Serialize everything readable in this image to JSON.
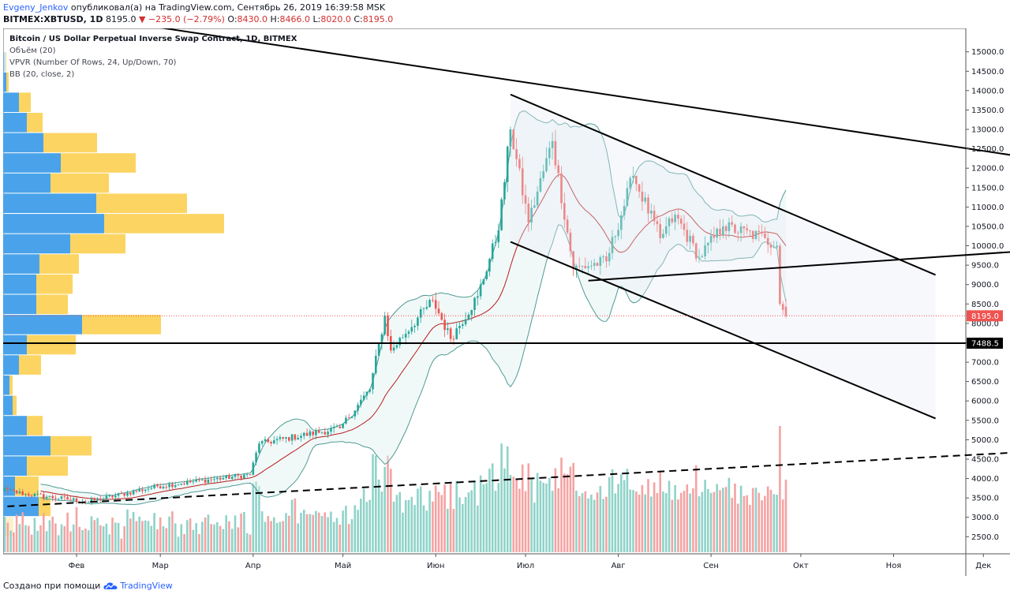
{
  "header": {
    "author": "Evgeny_Jenkov",
    "published": "опубликовал(а) на TradingView.com, Сентябрь 26, 2019 16:39:58 MSK",
    "symbol": "BITMEX:XBTUSD, 1D",
    "last": "8195.0",
    "change": "▼ −235.0 (−2.79%)",
    "o_label": "O:",
    "o_value": "8430.0",
    "h_label": "H:",
    "h_value": "8466.0",
    "l_label": "L:",
    "l_value": "8020.0",
    "c_label": "C:",
    "c_value": "8195.0"
  },
  "legend": {
    "title": "Bitcoin / US Dollar Perpetual Inverse Swap Contract, 1D, BITMEX",
    "volume": "Объём (20)",
    "vpvr": "VPVR (Number Of Rows, 24, Up/Down, 70)",
    "bb": "BB (20, close, 2)"
  },
  "price_labels": {
    "last": "8195.0",
    "level": "7488.5"
  },
  "footer": {
    "created_with": "Создано при помощи",
    "brand": "TradingView",
    "logo_icon": "tradingview-cloud-icon"
  },
  "colors": {
    "up": "#26a69a",
    "down": "#ef5350",
    "bb": "#4f9a94",
    "basis": "#b71c1c",
    "vol_up": "#8fd3c9",
    "vol_down": "#f5a3a3",
    "vpvr_up": "#4aa3ea",
    "vpvr_down": "#fcd462",
    "last_price": "#ef5350",
    "accent": "#2962ff"
  },
  "chart_data": {
    "type": "candlestick",
    "ylim": [
      2100,
      15400
    ],
    "y_ticks": [
      "2500.0",
      "3000.0",
      "3500.0",
      "4000.0",
      "4500.0",
      "5000.0",
      "5500.0",
      "6000.0",
      "6500.0",
      "7000.0",
      "7500.0",
      "8000.0",
      "8500.0",
      "9000.0",
      "9500.0",
      "10000.0",
      "10500.0",
      "11000.0",
      "11500.0",
      "12000.0",
      "12500.0",
      "13000.0",
      "13500.0",
      "14000.0",
      "14500.0",
      "15000.0"
    ],
    "x_labels": [
      "Фев",
      "Мар",
      "Апр",
      "Май",
      "Июн",
      "Июл",
      "Авг",
      "Сен",
      "Окт",
      "Ноя",
      "Дек"
    ],
    "key_prices": [
      {
        "date": "2019-01-01",
        "price": 3800
      },
      {
        "date": "2019-01-15",
        "price": 3600
      },
      {
        "date": "2019-02-05",
        "price": 3400
      },
      {
        "date": "2019-02-28",
        "price": 3800
      },
      {
        "date": "2019-03-31",
        "price": 4100
      },
      {
        "date": "2019-04-03",
        "price": 4900
      },
      {
        "date": "2019-04-30",
        "price": 5300
      },
      {
        "date": "2019-05-10",
        "price": 6300
      },
      {
        "date": "2019-05-15",
        "price": 8200
      },
      {
        "date": "2019-05-17",
        "price": 7300
      },
      {
        "date": "2019-05-31",
        "price": 8600
      },
      {
        "date": "2019-06-06",
        "price": 7600
      },
      {
        "date": "2019-06-15",
        "price": 8700
      },
      {
        "date": "2019-06-22",
        "price": 10400
      },
      {
        "date": "2019-06-26",
        "price": 13000
      },
      {
        "date": "2019-07-02",
        "price": 10600
      },
      {
        "date": "2019-07-10",
        "price": 12700
      },
      {
        "date": "2019-07-17",
        "price": 9400
      },
      {
        "date": "2019-07-28",
        "price": 9600
      },
      {
        "date": "2019-08-06",
        "price": 11800
      },
      {
        "date": "2019-08-15",
        "price": 10200
      },
      {
        "date": "2019-08-20",
        "price": 10800
      },
      {
        "date": "2019-08-28",
        "price": 9700
      },
      {
        "date": "2019-09-05",
        "price": 10500
      },
      {
        "date": "2019-09-19",
        "price": 10200
      },
      {
        "date": "2019-09-23",
        "price": 10000
      },
      {
        "date": "2019-09-24",
        "price": 8500
      },
      {
        "date": "2019-09-26",
        "price": 8195
      }
    ],
    "horizontal_levels": [
      7488.5
    ],
    "trendlines": [
      {
        "name": "",
        "style": "solid",
        "from": {
          "date": "2018-12-15",
          "price": 16500
        },
        "to": {
          "date": "2019-12-31",
          "price": 12100
        }
      },
      {
        "name": "",
        "style": "solid",
        "from": {
          "date": "2019-06-26",
          "price": 13900
        },
        "to": {
          "date": "2019-11-15",
          "price": 9250
        }
      },
      {
        "name": "",
        "style": "solid",
        "from": {
          "date": "2019-06-26",
          "price": 10100
        },
        "to": {
          "date": "2019-11-15",
          "price": 5550
        }
      },
      {
        "name": "",
        "style": "solid",
        "from": {
          "date": "2019-07-22",
          "price": 9100
        },
        "to": {
          "date": "2019-12-31",
          "price": 9950
        }
      },
      {
        "name": "",
        "style": "dashed",
        "from": {
          "date": "2019-01-01",
          "price": 3250
        },
        "to": {
          "date": "2019-12-31",
          "price": 4750
        }
      }
    ],
    "vpvr_price_range": [
      2500,
      15000
    ],
    "vpvr_rows": [
      {
        "up": 3,
        "down": 10
      },
      {
        "up": 45,
        "down": 15
      },
      {
        "up": 15,
        "down": 30
      },
      {
        "up": 30,
        "down": 52
      },
      {
        "up": 60,
        "down": 52
      },
      {
        "up": 30,
        "down": 20
      },
      {
        "up": 12,
        "down": 5
      },
      {
        "up": 8,
        "down": 4
      },
      {
        "up": 20,
        "down": 28
      },
      {
        "up": 30,
        "down": 62
      },
      {
        "up": 100,
        "down": 100
      },
      {
        "up": 42,
        "down": 40
      },
      {
        "up": 42,
        "down": 46
      },
      {
        "up": 46,
        "down": 50
      },
      {
        "up": 85,
        "down": 70
      },
      {
        "up": 128,
        "down": 152
      },
      {
        "up": 118,
        "down": 115
      },
      {
        "up": 60,
        "down": 74
      },
      {
        "up": 73,
        "down": 95
      },
      {
        "up": 51,
        "down": 68
      },
      {
        "up": 30,
        "down": 20
      },
      {
        "up": 20,
        "down": 15
      },
      {
        "up": 4,
        "down": 3
      },
      {
        "up": 3,
        "down": 2
      }
    ]
  }
}
